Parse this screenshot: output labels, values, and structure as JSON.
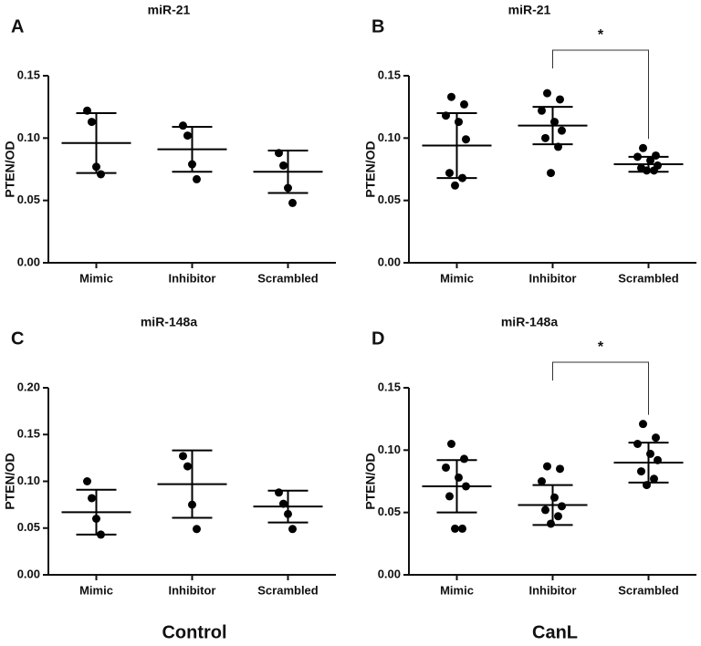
{
  "column_labels": [
    "Control",
    "CanL"
  ],
  "chart_data": [
    {
      "type": "scatter",
      "panel_label": "A",
      "title": "miR-21",
      "ylabel": "PTEN/OD",
      "categories": [
        "Mimic",
        "Inhibitor",
        "Scrambled"
      ],
      "points": [
        [
          0.122,
          0.113,
          0.077,
          0.071
        ],
        [
          0.11,
          0.102,
          0.079,
          0.067
        ],
        [
          0.088,
          0.078,
          0.06,
          0.048
        ]
      ],
      "means": [
        0.096,
        0.091,
        0.073
      ],
      "sds": [
        0.024,
        0.018,
        0.017
      ],
      "ylim": [
        0,
        0.15
      ],
      "yticks": [
        {
          "value": 0,
          "label": "0.00"
        },
        0.05,
        {
          "value": 0.1,
          "label": "0.10"
        },
        0.15
      ],
      "color": "#000000",
      "annotations": []
    },
    {
      "type": "scatter",
      "panel_label": "B",
      "title": "miR-21",
      "ylabel": "PTEN/OD",
      "categories": [
        "Mimic",
        "Inhibitor",
        "Scrambled"
      ],
      "points": [
        [
          0.133,
          0.127,
          0.118,
          0.113,
          0.099,
          0.072,
          0.068,
          0.062
        ],
        [
          0.136,
          0.131,
          0.122,
          0.113,
          0.106,
          0.1,
          0.093,
          0.072
        ],
        [
          0.092,
          0.086,
          0.085,
          0.082,
          0.078,
          0.076,
          0.074,
          0.074
        ]
      ],
      "means": [
        0.094,
        0.11,
        0.079
      ],
      "sds": [
        0.026,
        0.015,
        0.006
      ],
      "ylim": [
        0,
        0.15
      ],
      "yticks": [
        {
          "value": 0,
          "label": "0.00"
        },
        0.05,
        {
          "value": 0.1,
          "label": "0.10"
        },
        0.15
      ],
      "color": "#000000",
      "annotations": [
        {
          "text": "*",
          "between": [
            "Inhibitor",
            "Scrambled"
          ]
        }
      ]
    },
    {
      "type": "scatter",
      "panel_label": "C",
      "title": "miR-148a",
      "ylabel": "PTEN/OD",
      "categories": [
        "Mimic",
        "Inhibitor",
        "Scrambled"
      ],
      "points": [
        [
          0.1,
          0.082,
          0.06,
          0.043
        ],
        [
          0.127,
          0.116,
          0.075,
          0.049
        ],
        [
          0.088,
          0.076,
          0.065,
          0.049
        ]
      ],
      "means": [
        0.067,
        0.097,
        0.073
      ],
      "sds": [
        0.024,
        0.036,
        0.017
      ],
      "ylim": [
        0,
        0.2
      ],
      "yticks": [
        {
          "value": 0,
          "label": "0.00"
        },
        0.05,
        {
          "value": 0.1,
          "label": "0.10"
        },
        0.15,
        {
          "value": 0.2,
          "label": "0.20"
        }
      ],
      "color": "#000000",
      "annotations": []
    },
    {
      "type": "scatter",
      "panel_label": "D",
      "title": "miR-148a",
      "ylabel": "PTEN/OD",
      "categories": [
        "Mimic",
        "Inhibitor",
        "Scrambled"
      ],
      "points": [
        [
          0.105,
          0.093,
          0.086,
          0.078,
          0.071,
          0.063,
          0.037,
          0.037
        ],
        [
          0.087,
          0.085,
          0.075,
          0.062,
          0.055,
          0.052,
          0.047,
          0.041
        ],
        [
          0.121,
          0.11,
          0.105,
          0.097,
          0.092,
          0.083,
          0.077,
          0.072
        ]
      ],
      "means": [
        0.071,
        0.056,
        0.09
      ],
      "sds": [
        0.021,
        0.016,
        0.016
      ],
      "ylim": [
        0,
        0.15
      ],
      "yticks": [
        {
          "value": 0,
          "label": "0.00"
        },
        0.05,
        {
          "value": 0.1,
          "label": "0.10"
        },
        0.15
      ],
      "color": "#000000",
      "annotations": [
        {
          "text": "*",
          "between": [
            "Inhibitor",
            "Scrambled"
          ]
        }
      ]
    }
  ]
}
